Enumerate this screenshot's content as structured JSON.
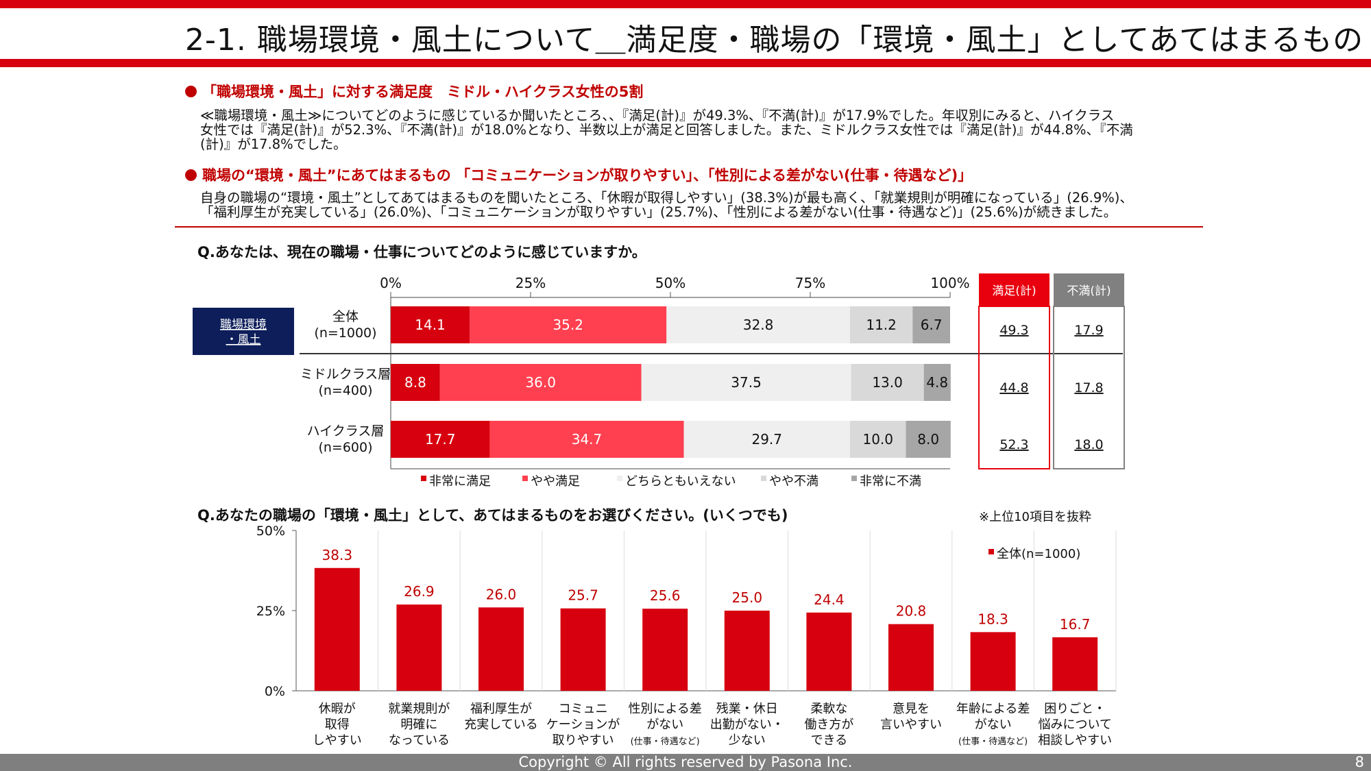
{
  "slide": {
    "title": "2-1. 職場環境・風土について＿満足度・職場の「環境・風土」としてあてはまるもの",
    "page_number": "8",
    "copyright": "Copyright © All rights reserved by Pasona Inc."
  },
  "section1": {
    "heading": "「職場環境・風土」に対する満足度　ミドル・ハイクラス女性の5割",
    "lines": [
      "≪職場環境・風土≫についてどのように感じているか聞いたところ、、『満足(計)』が49.3%、『不満(計)』が17.9%でした。年収別にみると、ハイクラス",
      "女性では『満足(計)』が52.3%、『不満(計)』が18.0%となり、半数以上が満足と回答しました。また、ミドルクラス女性では『満足(計)』が44.8%、『不満",
      "(計)』が17.8%でした。"
    ]
  },
  "section2": {
    "heading": "職場の“環境・風土”にあてはまるもの 「コミュニケーションが取りやすい」、「性別による差がない(仕事・待遇など)」",
    "lines": [
      "自身の職場の“環境・風土”としてあてはまるものを聞いたところ、「休暇が取得しやすい」(38.3%)が最も高く、「就業規則が明確になっている」(26.9%)、",
      "「福利厚生が充実している」(26.0%)、「コミュニケーションが取りやすい」(25.7%)、「性別による差がない(仕事・待遇など)」(25.6%)が続きました。"
    ]
  },
  "question1": "Q.あなたは、現在の職場・仕事についてどのように感じていますか。",
  "question2": "Q.あなたの職場の「環境・風土」として、あてはまるものをお選びください。(いくつでも)",
  "note2": "※上位10項目を抜粋",
  "chart_data": [
    {
      "type": "bar",
      "orientation": "horizontal",
      "stacked": true,
      "category_group": [
        "職場環境",
        "・風土"
      ],
      "categories": [
        [
          "全体",
          "(n=1000)"
        ],
        [
          "ミドルクラス層",
          "(n=400)"
        ],
        [
          "ハイクラス層",
          "(n=600)"
        ]
      ],
      "x_ticks": [
        "0%",
        "25%",
        "50%",
        "75%",
        "100%"
      ],
      "xlim": [
        0,
        100
      ],
      "series": [
        {
          "name": "非常に満足",
          "color": "#d7000f",
          "values": [
            14.1,
            8.8,
            17.7
          ]
        },
        {
          "name": "やや満足",
          "color": "#ff4050",
          "values": [
            35.2,
            36.0,
            34.7
          ]
        },
        {
          "name": "どちらともいえない",
          "color": "#efefef",
          "values": [
            32.8,
            37.5,
            29.7
          ]
        },
        {
          "name": "やや不満",
          "color": "#d9d9d9",
          "values": [
            11.2,
            13.0,
            10.0
          ]
        },
        {
          "name": "非常に不満",
          "color": "#a6a6a6",
          "values": [
            6.7,
            4.8,
            8.0
          ]
        }
      ],
      "summary_columns": [
        {
          "name": "満足(計)",
          "color": "#e8000f",
          "values": [
            "49.3",
            "44.8",
            "52.3"
          ]
        },
        {
          "name": "不満(計)",
          "color": "#808080",
          "values": [
            "17.9",
            "17.8",
            "18.0"
          ]
        }
      ],
      "legend_position": "bottom"
    },
    {
      "type": "bar",
      "categories": [
        [
          "休暇が",
          "取得",
          "しやすい"
        ],
        [
          "就業規則が",
          "明確に",
          "なっている"
        ],
        [
          "福利厚生が",
          "充実している"
        ],
        [
          "コミュニ",
          "ケーションが",
          "取りやすい"
        ],
        [
          "性別による差",
          "がない",
          "(仕事・待遇など)"
        ],
        [
          "残業・休日",
          "出勤がない・",
          "少ない"
        ],
        [
          "柔軟な",
          "働き方が",
          "できる"
        ],
        [
          "意見を",
          "言いやすい"
        ],
        [
          "年齢による差",
          "がない",
          "(仕事・待遇など)"
        ],
        [
          "困りごと・",
          "悩みについて",
          "相談しやすい"
        ]
      ],
      "series": [
        {
          "name": "全体(n=1000)",
          "color": "#d7000f",
          "values": [
            38.3,
            26.9,
            26.0,
            25.7,
            25.6,
            25.0,
            24.4,
            20.8,
            18.3,
            16.7
          ]
        }
      ],
      "y_ticks": [
        "0%",
        "25%",
        "50%"
      ],
      "ylim": [
        0,
        50
      ],
      "grid": "vertical separators",
      "legend_position": "top-right"
    }
  ]
}
